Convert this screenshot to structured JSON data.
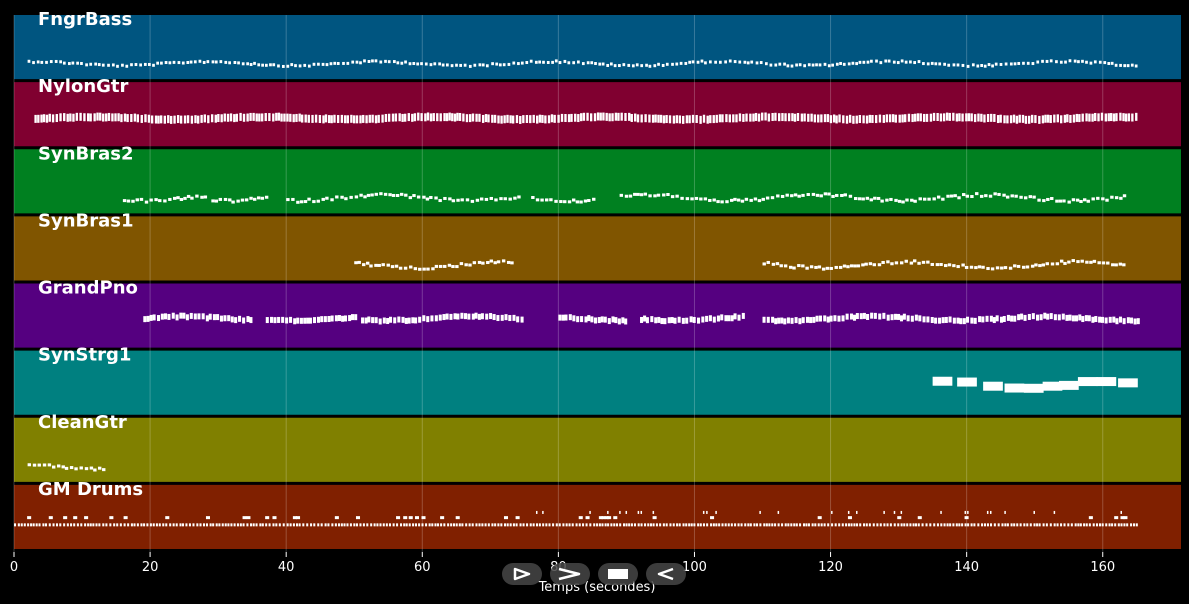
{
  "chart_data": {
    "type": "piano-roll",
    "title": "",
    "xlabel": "Temps (secondes)",
    "ylabel": "",
    "xlim": [
      0,
      171.5
    ],
    "x_ticks": [
      0,
      20,
      40,
      60,
      80,
      100,
      120,
      140,
      160
    ],
    "grid": true,
    "tracks": [
      {
        "name": "FngrBass",
        "color": "#005580",
        "segments": [
          [
            2,
            165
          ]
        ],
        "style": "bass"
      },
      {
        "name": "NylonGtr",
        "color": "#800030",
        "segments": [
          [
            3,
            165
          ]
        ],
        "style": "chords"
      },
      {
        "name": "SynBras2",
        "color": "#008020",
        "segments": [
          [
            16,
            28
          ],
          [
            29,
            37
          ],
          [
            40,
            74
          ],
          [
            76,
            85
          ],
          [
            89,
            163
          ]
        ],
        "style": "melody"
      },
      {
        "name": "SynBras1",
        "color": "#805500",
        "segments": [
          [
            50,
            73
          ],
          [
            110,
            163
          ]
        ],
        "style": "melody"
      },
      {
        "name": "GrandPno",
        "color": "#550080",
        "segments": [
          [
            19,
            35
          ],
          [
            37,
            50
          ],
          [
            51,
            75
          ],
          [
            80,
            90
          ],
          [
            92,
            107
          ],
          [
            110,
            165
          ]
        ],
        "style": "piano"
      },
      {
        "name": "SynStrg1",
        "color": "#008080",
        "segments": [
          [
            135,
            165
          ]
        ],
        "style": "pad"
      },
      {
        "name": "CleanGtr",
        "color": "#808000",
        "segments": [
          [
            2,
            13
          ]
        ],
        "style": "melody"
      },
      {
        "name": "GM Drums",
        "color": "#802000",
        "segments": [
          [
            0,
            165
          ]
        ],
        "style": "drums"
      }
    ]
  },
  "transport": {
    "play_label": "play",
    "fast_forward_label": "fast-forward",
    "stop_label": "stop",
    "rewind_label": "rewind"
  }
}
